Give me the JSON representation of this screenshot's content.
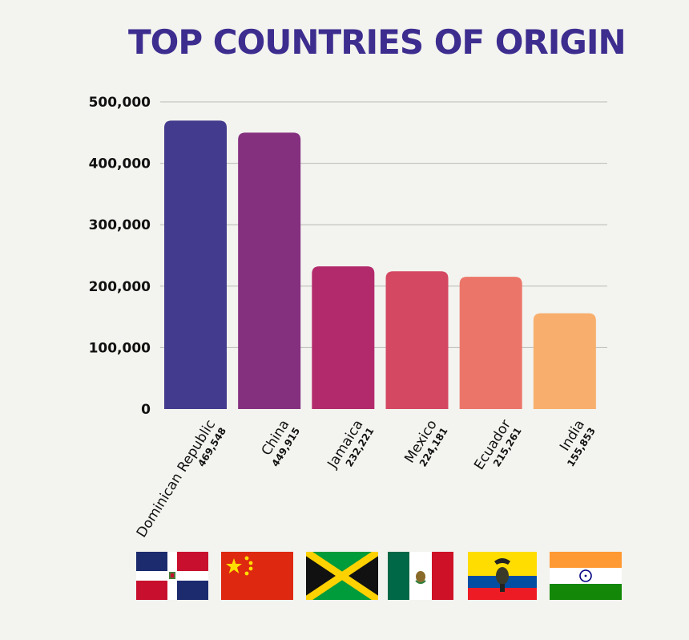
{
  "chart_data": {
    "type": "bar",
    "title": "TOP COUNTRIES OF ORIGIN",
    "categories": [
      "Dominican Republic",
      "China",
      "Jamaica",
      "Mexico",
      "Ecuador",
      "India"
    ],
    "values": [
      469548,
      449915,
      232221,
      224181,
      215261,
      155853
    ],
    "value_labels": [
      "469,548",
      "449,915",
      "232,221",
      "224,181",
      "215,261",
      "155,853"
    ],
    "ylim": [
      0,
      500000
    ],
    "yticks": [
      0,
      100000,
      200000,
      300000,
      400000,
      500000
    ],
    "ytick_labels": [
      "0",
      "100,000",
      "200,000",
      "300,000",
      "400,000",
      "500,000"
    ],
    "grid": true,
    "colors": [
      "#433b8e",
      "#84307f",
      "#b22a6b",
      "#d54862",
      "#ec7569",
      "#f8ae6c"
    ],
    "xlabel": "",
    "ylabel": ""
  },
  "flags": [
    {
      "country": "Dominican Republic",
      "icon": "dominican-republic-flag-icon"
    },
    {
      "country": "China",
      "icon": "china-flag-icon"
    },
    {
      "country": "Jamaica",
      "icon": "jamaica-flag-icon"
    },
    {
      "country": "Mexico",
      "icon": "mexico-flag-icon"
    },
    {
      "country": "Ecuador",
      "icon": "ecuador-flag-icon"
    },
    {
      "country": "India",
      "icon": "india-flag-icon"
    }
  ]
}
